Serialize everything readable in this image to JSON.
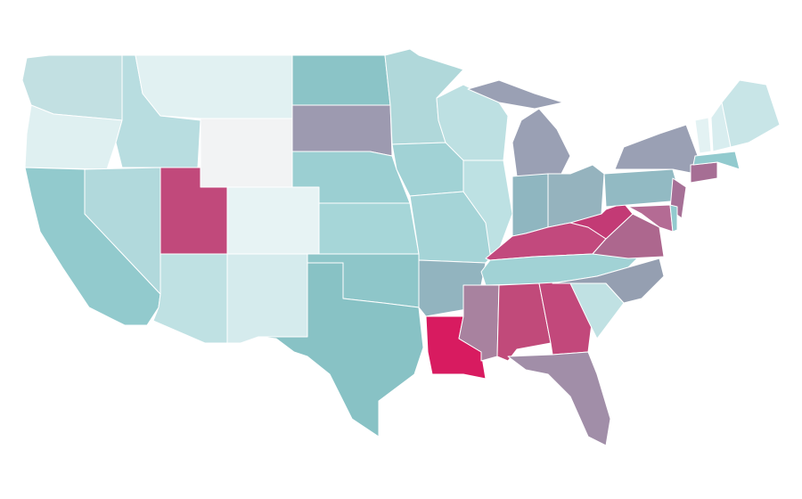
{
  "map": {
    "regions": [
      {
        "color": "#c2e0e2"
      },
      {
        "color": "#dff0f1"
      },
      {
        "color": "#92cacd"
      },
      {
        "color": "#b8dde0"
      },
      {
        "color": "#b1d9dc"
      },
      {
        "color": "#e1f1f2"
      },
      {
        "color": "#f2f3f4"
      },
      {
        "color": "#c1497b"
      },
      {
        "color": "#e7f3f4"
      },
      {
        "color": "#bfe1e3"
      },
      {
        "color": "#d5ebed"
      },
      {
        "color": "#8bc4c7"
      },
      {
        "color": "#9d9ab0"
      },
      {
        "color": "#9bcfd2"
      },
      {
        "color": "#a6d6d8"
      },
      {
        "color": "#8ec6c9"
      },
      {
        "color": "#88c2c5"
      },
      {
        "color": "#b0d8da"
      },
      {
        "color": "#a1d2d5"
      },
      {
        "color": "#a5d4d7"
      },
      {
        "color": "#92b4bf"
      },
      {
        "color": "#d81b60"
      },
      {
        "color": "#bde0e2"
      },
      {
        "color": "#bde1e3"
      },
      {
        "color": "#9aa0b4"
      },
      {
        "color": "#9aa0b4"
      },
      {
        "color": "#8fb6c0"
      },
      {
        "color": "#95b3be"
      },
      {
        "color": "#c2497d"
      },
      {
        "color": "#a1d2d5"
      },
      {
        "color": "#a8829f"
      },
      {
        "color": "#c14a7a"
      },
      {
        "color": "#c2487b"
      },
      {
        "color": "#a18ea8"
      },
      {
        "color": "#c0e1e3"
      },
      {
        "color": "#959fb1"
      },
      {
        "color": "#ad678e"
      },
      {
        "color": "#c33a75"
      },
      {
        "color": "#92bac3"
      },
      {
        "color": "#9aa0b4"
      },
      {
        "color": "#a67096"
      },
      {
        "color": "#b46b94"
      },
      {
        "color": "#92cace"
      },
      {
        "color": "#a66e94"
      },
      {
        "color": "#92cace"
      },
      {
        "color": "#e3f2f3"
      },
      {
        "color": "#d8edef"
      },
      {
        "color": "#c8e5e7"
      }
    ]
  }
}
